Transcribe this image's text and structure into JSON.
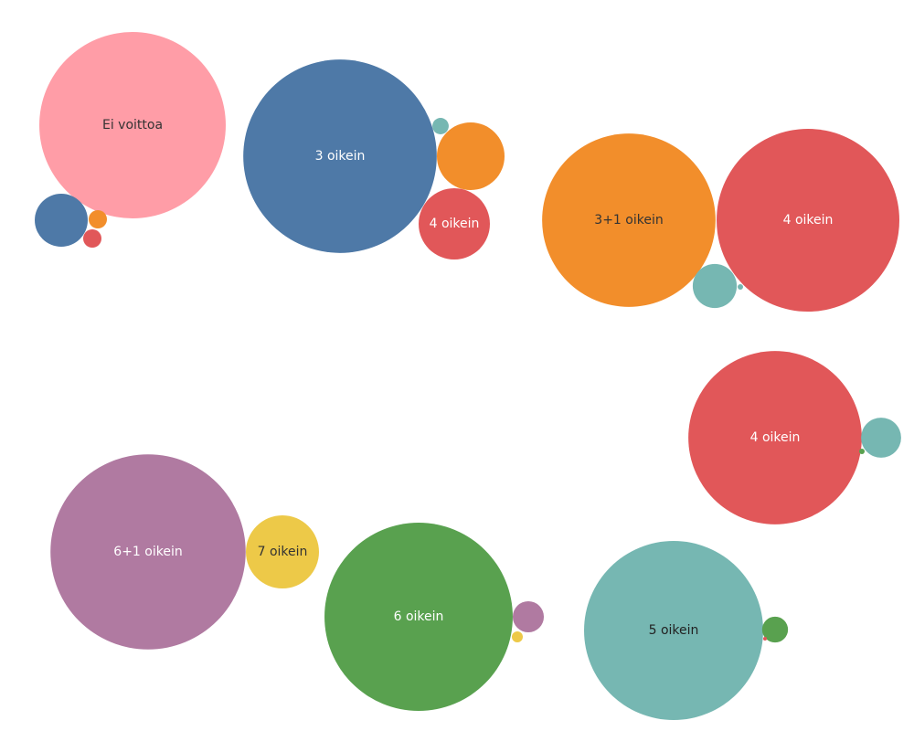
{
  "chart_data": {
    "type": "bubble",
    "clusters": [
      {
        "bubbles": [
          {
            "label": "Ei voittoa",
            "color": "#ff9da7",
            "value": 104
          },
          {
            "label": null,
            "color": "#4e79a7",
            "value": 8.4
          },
          {
            "label": null,
            "color": "#f28e2b",
            "value": 1
          },
          {
            "label": null,
            "color": "#e15759",
            "value": 1
          }
        ]
      },
      {
        "bubbles": [
          {
            "label": "3 oikein",
            "color": "#4e79a7",
            "value": 112
          },
          {
            "label": null,
            "color": "#f28e2b",
            "value": 13.7
          },
          {
            "label": "4 oikein",
            "color": "#e15759",
            "value": 15.2
          },
          {
            "label": null,
            "color": "#76b7b2",
            "value": 0.8
          }
        ]
      },
      {
        "bubbles": [
          {
            "label": "3+1 oikein",
            "color": "#f28e2b",
            "value": 90
          },
          {
            "label": "4 oikein",
            "color": "#e15759",
            "value": 100
          },
          {
            "label": null,
            "color": "#76b7b2",
            "value": 5.8
          },
          {
            "label": null,
            "color": "#76b7b2",
            "value": 0.09
          }
        ]
      },
      {
        "bubbles": [
          {
            "label": "4 oikein",
            "color": "#e15759",
            "value": 90
          },
          {
            "label": null,
            "color": "#76b7b2",
            "value": 4.8
          },
          {
            "label": null,
            "color": "#59a14f",
            "value": 0.09
          }
        ]
      },
      {
        "bubbles": [
          {
            "label": "6+1 oikein",
            "color": "#b07aa1",
            "value": 114
          },
          {
            "label": "7 oikein",
            "color": "#edc948",
            "value": 16
          }
        ]
      },
      {
        "bubbles": [
          {
            "label": "6 oikein",
            "color": "#59a14f",
            "value": 106
          },
          {
            "label": null,
            "color": "#b07aa1",
            "value": 2.9
          },
          {
            "label": null,
            "color": "#edc948",
            "value": 0.36
          }
        ]
      },
      {
        "bubbles": [
          {
            "label": "5 oikein",
            "color": "#76b7b2",
            "value": 96
          },
          {
            "label": null,
            "color": "#59a14f",
            "value": 2
          },
          {
            "label": null,
            "color": "#e15759",
            "value": 0.04
          }
        ]
      }
    ]
  }
}
